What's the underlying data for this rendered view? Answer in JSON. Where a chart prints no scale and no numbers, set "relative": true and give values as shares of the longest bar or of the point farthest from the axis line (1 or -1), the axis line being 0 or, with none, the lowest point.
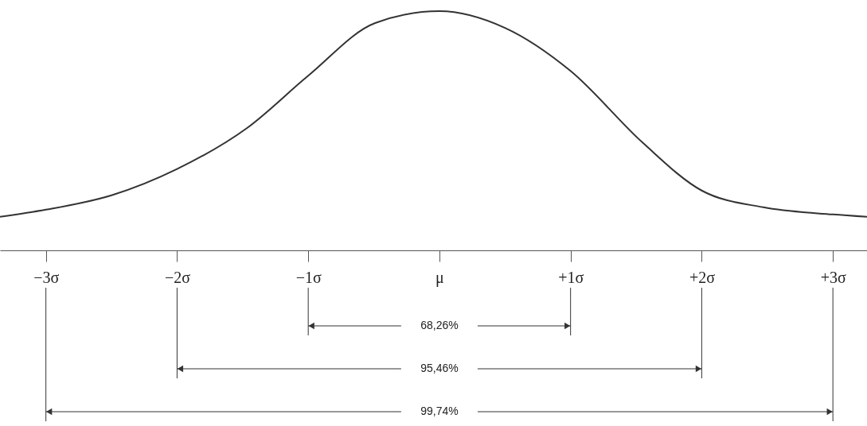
{
  "chart_data": {
    "type": "line",
    "relative": true,
    "x": [
      -3.35,
      -3,
      -2.5,
      -2,
      -1.47,
      -1,
      -0.49,
      0,
      0.5,
      1,
      1.55,
      2,
      2.47,
      3,
      3.26
    ],
    "series": [
      {
        "color": "#333333",
        "values": [
          0.14,
          0.17,
          0.23,
          0.34,
          0.51,
          0.73,
          0.95,
          1,
          0.93,
          0.75,
          0.45,
          0.25,
          0.18,
          0.15,
          0.14
        ]
      }
    ],
    "xlim": [
      -3.35,
      3.26
    ],
    "xticks": [
      {
        "value": -3,
        "label": "−3σ"
      },
      {
        "value": -2,
        "label": "−2σ"
      },
      {
        "value": -1,
        "label": "−1σ"
      },
      {
        "value": 0,
        "label": "μ"
      },
      {
        "value": 1,
        "label": "+1σ"
      },
      {
        "value": 2,
        "label": "+2σ"
      },
      {
        "value": 3,
        "label": "+3σ"
      }
    ],
    "annotations": [
      "68,26%",
      "95,46%",
      "99,74%"
    ]
  }
}
